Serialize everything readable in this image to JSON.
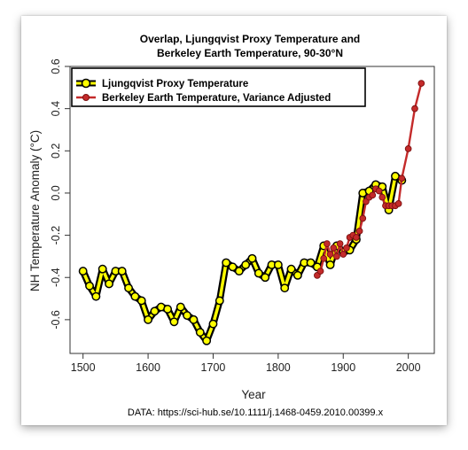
{
  "chart_data": {
    "type": "line",
    "title_line1": "Overlap, Ljungqvist Proxy Temperature and",
    "title_line2": "Berkeley Earth Temperature, 90-30°N",
    "xlabel": "Year",
    "ylabel": "NH Temperature Anomaly (°C)",
    "xlim": [
      1480,
      2040
    ],
    "ylim": [
      -0.76,
      0.6
    ],
    "x_ticks": [
      1500,
      1600,
      1700,
      1800,
      1900,
      2000
    ],
    "y_ticks": [
      -0.6,
      -0.4,
      -0.2,
      0.0,
      0.2,
      0.4,
      0.6
    ],
    "x_tick_labels": [
      "1500",
      "1600",
      "1700",
      "1800",
      "1900",
      "2000"
    ],
    "y_tick_labels": [
      "-0.6",
      "-0.4",
      "-0.2",
      "0.0",
      "0.2",
      "0.4",
      "0.6"
    ],
    "legend_position": "top-left",
    "footer": "DATA: https://sci-hub.se/10.1111/j.1468-0459.2010.00399.x",
    "series": [
      {
        "name": "Ljungqvist Proxy Temperature",
        "color": "#ffff00",
        "outline": "#000000",
        "x": [
          1500,
          1510,
          1520,
          1530,
          1540,
          1550,
          1560,
          1570,
          1580,
          1590,
          1600,
          1610,
          1620,
          1630,
          1640,
          1650,
          1660,
          1670,
          1680,
          1690,
          1700,
          1710,
          1720,
          1730,
          1740,
          1750,
          1760,
          1770,
          1780,
          1790,
          1800,
          1810,
          1820,
          1830,
          1840,
          1850,
          1860,
          1870,
          1880,
          1890,
          1900,
          1910,
          1920,
          1930,
          1940,
          1950,
          1960,
          1970,
          1980,
          1990
        ],
        "values": [
          -0.37,
          -0.44,
          -0.49,
          -0.36,
          -0.43,
          -0.37,
          -0.37,
          -0.45,
          -0.49,
          -0.51,
          -0.6,
          -0.56,
          -0.54,
          -0.55,
          -0.61,
          -0.54,
          -0.58,
          -0.6,
          -0.66,
          -0.7,
          -0.62,
          -0.51,
          -0.33,
          -0.35,
          -0.37,
          -0.34,
          -0.31,
          -0.38,
          -0.4,
          -0.34,
          -0.34,
          -0.45,
          -0.36,
          -0.39,
          -0.33,
          -0.33,
          -0.35,
          -0.25,
          -0.34,
          -0.25,
          -0.28,
          -0.27,
          -0.22,
          0.0,
          0.01,
          0.04,
          0.03,
          -0.08,
          0.08,
          0.06
        ]
      },
      {
        "name": "Berkeley Earth Temperature, Variance Adjusted",
        "color": "#c42a2a",
        "x": [
          1860,
          1865,
          1870,
          1875,
          1880,
          1885,
          1890,
          1895,
          1900,
          1905,
          1910,
          1915,
          1920,
          1925,
          1930,
          1935,
          1940,
          1945,
          1950,
          1955,
          1960,
          1965,
          1970,
          1975,
          1980,
          1985,
          1990,
          2000,
          2010,
          2020
        ],
        "values": [
          -0.39,
          -0.37,
          -0.31,
          -0.24,
          -0.29,
          -0.26,
          -0.3,
          -0.24,
          -0.29,
          -0.26,
          -0.21,
          -0.2,
          -0.21,
          -0.18,
          -0.12,
          -0.04,
          -0.02,
          -0.01,
          0.02,
          0.01,
          -0.02,
          -0.06,
          -0.06,
          -0.06,
          -0.06,
          -0.05,
          0.07,
          0.21,
          0.4,
          0.52
        ]
      }
    ]
  }
}
